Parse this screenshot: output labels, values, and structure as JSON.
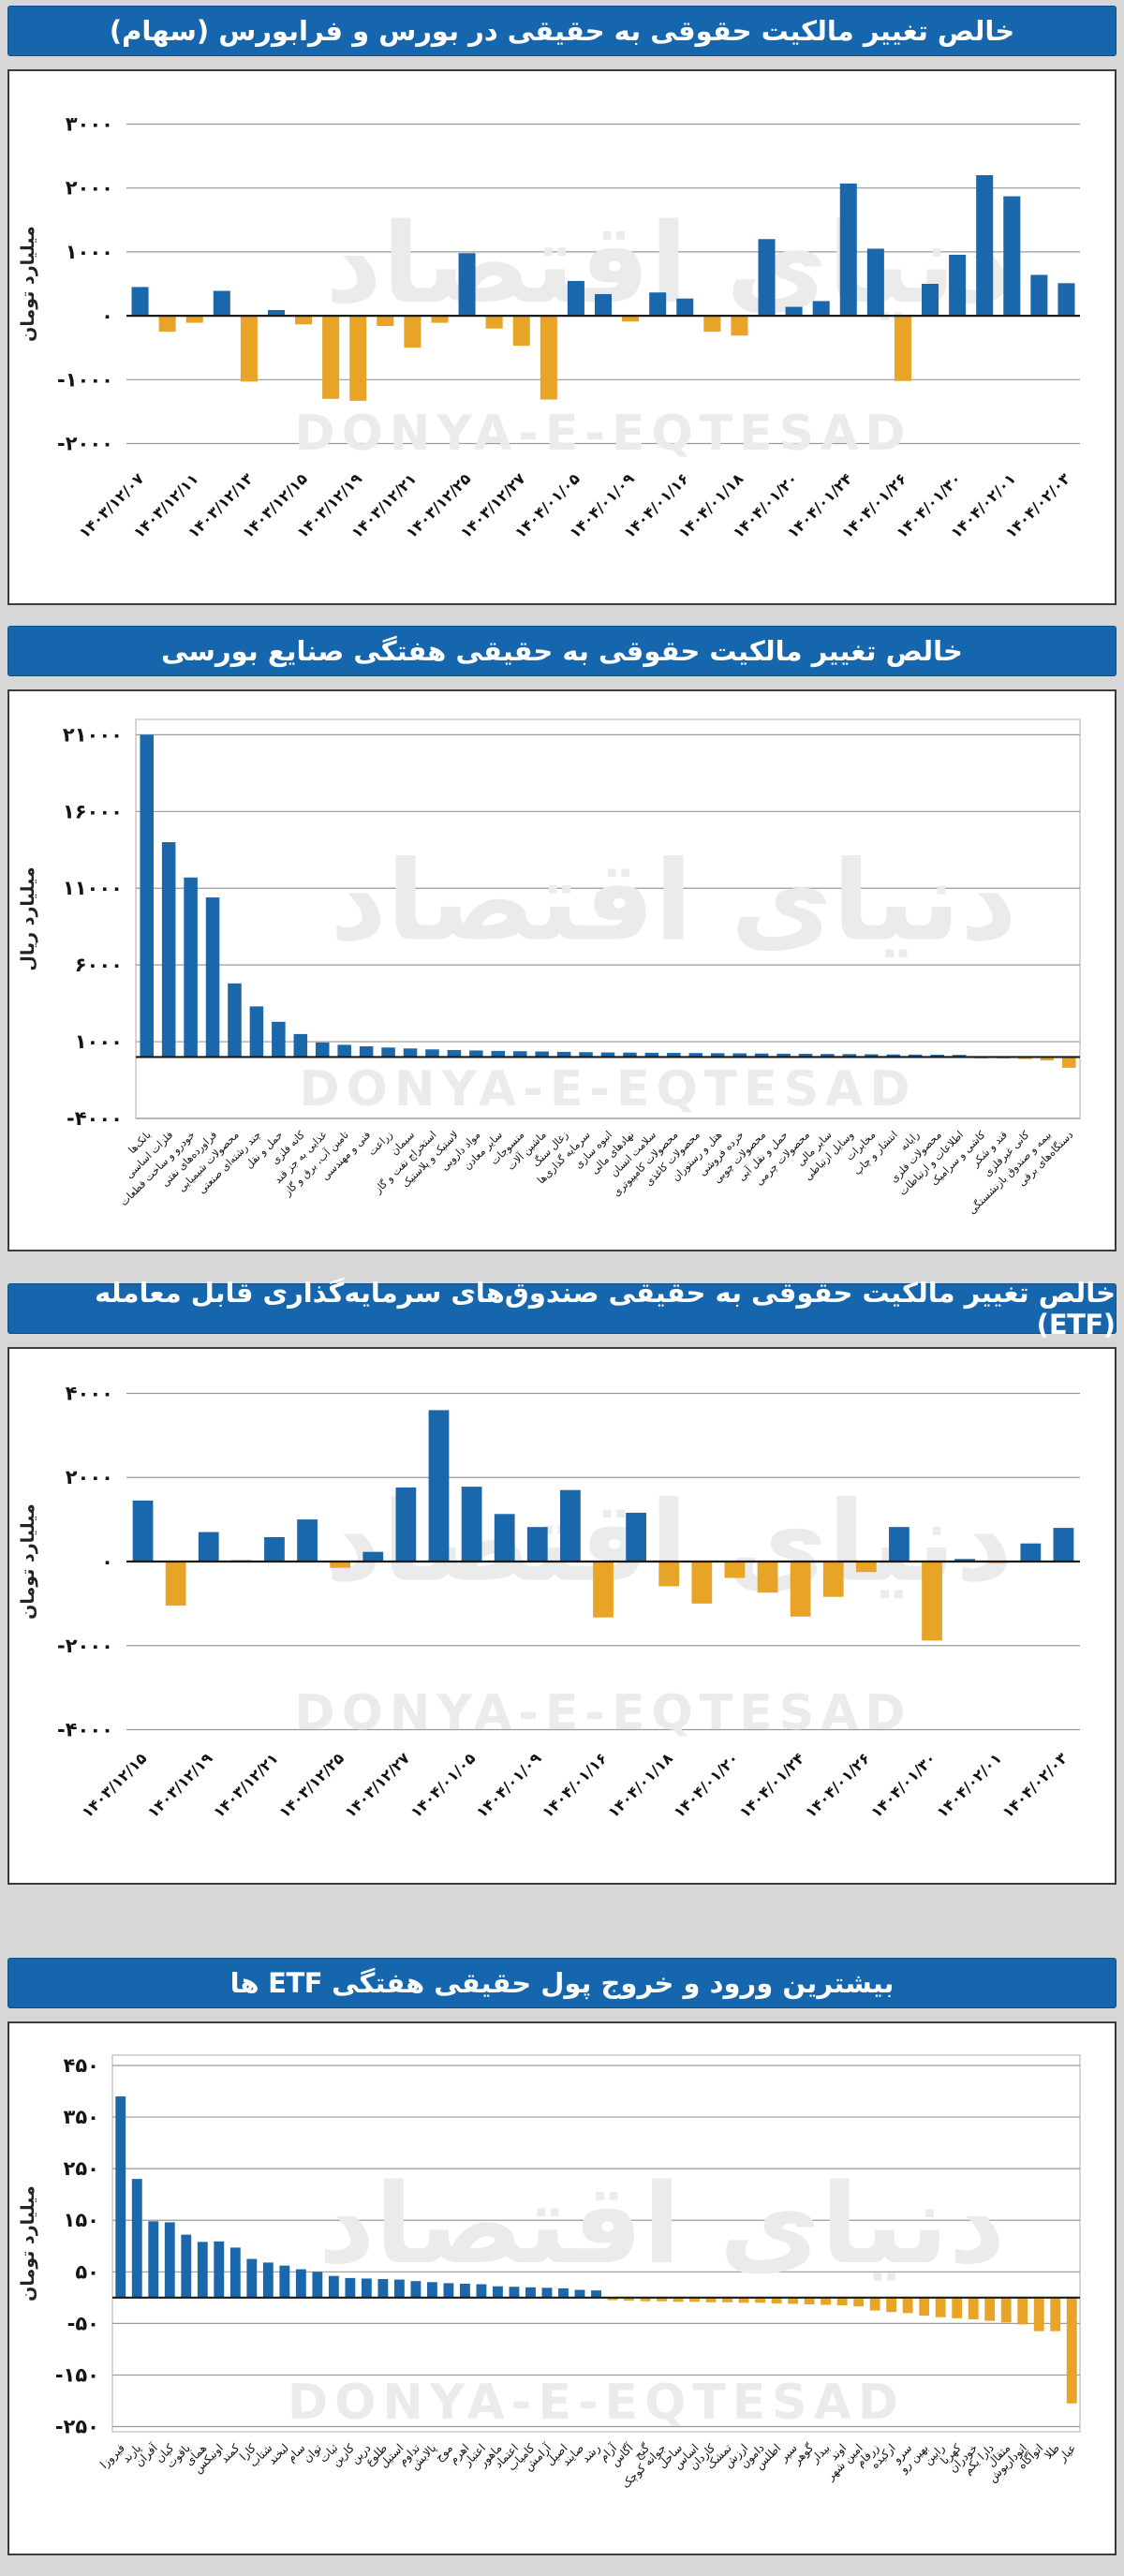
{
  "page": {
    "watermark_fa": "دنیای اقتصاد",
    "watermark_en": "DONYA-E-EQTESAD"
  },
  "colors": {
    "positive": "#1a67ab",
    "negative": "#e8a427",
    "title_bar": "#1666ae",
    "title_text": "#ffffff",
    "grid": "#9a9a9a",
    "axis": "#1a1a1a",
    "tick_text": "#141414",
    "watermark": "#ebebeb",
    "plot_border": "#c9c9c9"
  },
  "chart_data": [
    {
      "type": "bar",
      "title": "خالص تغییر مالکیت حقوقی به حقیقی در بورس و فرابورس (سهام)",
      "ylabel": "میلیارد تومان",
      "ylim": [
        -2300,
        3300
      ],
      "grid": true,
      "legend": "none",
      "yticks": [
        {
          "v": 3000,
          "label": "۳۰۰۰"
        },
        {
          "v": 2000,
          "label": "۲۰۰۰"
        },
        {
          "v": 1000,
          "label": "۱۰۰۰"
        },
        {
          "v": 0,
          "label": "۰"
        },
        {
          "v": -1000,
          "label": "-۱۰۰۰"
        },
        {
          "v": -2000,
          "label": "-۲۰۰۰"
        }
      ],
      "label_every": 2,
      "categories": [
        "۱۴۰۳/۱۲/۰۷",
        "۱۴۰۳/۱۲/۱۱",
        "۱۴۰۳/۱۲/۱۳",
        "۱۴۰۳/۱۲/۱۵",
        "۱۴۰۳/۱۲/۱۹",
        "۱۴۰۳/۱۲/۲۱",
        "۱۴۰۳/۱۲/۲۵",
        "۱۴۰۳/۱۲/۲۷",
        "۱۴۰۴/۰۱/۰۵",
        "۱۴۰۴/۰۱/۰۹",
        "۱۴۰۴/۰۱/۱۶",
        "۱۴۰۴/۰۱/۱۸",
        "۱۴۰۴/۰۱/۲۰",
        "۱۴۰۴/۰۱/۲۴",
        "۱۴۰۴/۰۱/۲۶",
        "۱۴۰۴/۰۱/۳۰",
        "۱۴۰۴/۰۲/۰۱",
        "۱۴۰۴/۰۲/۰۳"
      ],
      "values": [
        450,
        -250,
        -110,
        390,
        -1030,
        90,
        -135,
        -1300,
        -1330,
        -160,
        -500,
        -110,
        980,
        -200,
        -470,
        -1310,
        545,
        340,
        -90,
        365,
        270,
        -250,
        -310,
        1200,
        140,
        230,
        2070,
        1050,
        -1020,
        500,
        955,
        2200,
        1870,
        640,
        510
      ]
    },
    {
      "type": "bar",
      "title": "خالص تغییر مالکیت حقوقی به حقیقی هفتگی صنایع بورسی",
      "ylabel": "میلیارد ریال",
      "ylim": [
        -4000,
        22000
      ],
      "grid": true,
      "legend": "none",
      "yticks": [
        {
          "v": 21000,
          "label": "۲۱۰۰۰"
        },
        {
          "v": 16000,
          "label": "۱۶۰۰۰"
        },
        {
          "v": 11000,
          "label": "۱۱۰۰۰"
        },
        {
          "v": 6000,
          "label": "۶۰۰۰"
        },
        {
          "v": 1000,
          "label": "۱۰۰۰"
        },
        {
          "v": -4000,
          "label": "-۴۰۰۰"
        }
      ],
      "label_every": 1,
      "categories": [
        "بانک‌ها",
        "فلزات اساسی",
        "خودرو و ساخت قطعات",
        "فراورده‌های نفتی",
        "محصولات شیمیایی",
        "چند رشته‌ای صنعتی",
        "حمل و نقل",
        "کانه فلزی",
        "غذایی به جز قند",
        "تامین آب، برق و گاز",
        "فنی و مهندسی",
        "زراعت",
        "سیمان",
        "استخراج نفت و گاز",
        "لاستیک و پلاستیک",
        "مواد دارویی",
        "سایر معادن",
        "منسوجات",
        "ماشین آلات",
        "زغال سنگ",
        "سرمایه گذاری‌ها",
        "انبوه سازی",
        "نهادهای مالی",
        "سلامت انسان",
        "محصولات کامپیوتری",
        "محصولات کاغذی",
        "هتل و رستوران",
        "خرده فروشی",
        "محصولات چوبی",
        "حمل و نقل آبی",
        "محصولات چرمی",
        "سایر مالی",
        "وسایل ارتباطی",
        "مخابرات",
        "انتشار و چاپ",
        "رایانه",
        "محصولات فلزی",
        "اطلاعات و ارتباطات",
        "کاشی و سرامیک",
        "قند و شکر",
        "کانی غیرفلزی",
        "بیمه و صندوق بازنشستگی",
        "دستگاه‌های برقی"
      ],
      "values": [
        21000,
        14000,
        11700,
        10400,
        4800,
        3300,
        2300,
        1500,
        950,
        800,
        700,
        620,
        560,
        500,
        460,
        430,
        400,
        380,
        360,
        340,
        320,
        300,
        290,
        280,
        270,
        260,
        250,
        240,
        230,
        220,
        210,
        200,
        190,
        180,
        170,
        160,
        150,
        140,
        -60,
        -90,
        -130,
        -220,
        -700
      ]
    },
    {
      "type": "bar",
      "title": "خالص تغییر مالکیت حقوقی به حقیقی صندوق‌های سرمایه‌گذاری قابل معامله (ETF)",
      "ylabel": "میلیارد تومان",
      "ylim": [
        -4300,
        4300
      ],
      "grid": true,
      "legend": "none",
      "yticks": [
        {
          "v": 4000,
          "label": "۴۰۰۰"
        },
        {
          "v": 2000,
          "label": "۲۰۰۰"
        },
        {
          "v": 0,
          "label": "۰"
        },
        {
          "v": -2000,
          "label": "-۲۰۰۰"
        },
        {
          "v": -4000,
          "label": "-۴۰۰۰"
        }
      ],
      "label_every": 2,
      "categories": [
        "۱۴۰۳/۱۲/۱۵",
        "۱۴۰۳/۱۲/۱۹",
        "۱۴۰۳/۱۲/۲۱",
        "۱۴۰۳/۱۲/۲۵",
        "۱۴۰۳/۱۲/۲۷",
        "۱۴۰۴/۰۱/۰۵",
        "۱۴۰۴/۰۱/۰۹",
        "۱۴۰۴/۰۱/۱۶",
        "۱۴۰۴/۰۱/۱۸",
        "۱۴۰۴/۰۱/۲۰",
        "۱۴۰۴/۰۱/۲۴",
        "۱۴۰۴/۰۱/۲۶",
        "۱۴۰۴/۰۱/۳۰",
        "۱۴۰۴/۰۲/۰۱",
        "۱۴۰۴/۰۲/۰۳"
      ],
      "values": [
        1450,
        -1050,
        700,
        30,
        580,
        1000,
        -150,
        230,
        1760,
        3600,
        1780,
        1130,
        820,
        1700,
        -1330,
        1160,
        -590,
        -1000,
        -390,
        -740,
        -1310,
        -840,
        -250,
        820,
        -1880,
        60,
        -20,
        430,
        800
      ]
    },
    {
      "type": "bar",
      "title": "بیشترین ورود و خروج پول حقیقی هفتگی ETF ها",
      "ylabel": "میلیارد تومان",
      "ylim": [
        -260,
        470
      ],
      "grid": true,
      "legend": "none",
      "yticks": [
        {
          "v": 450,
          "label": "۴۵۰"
        },
        {
          "v": 350,
          "label": "۳۵۰"
        },
        {
          "v": 250,
          "label": "۲۵۰"
        },
        {
          "v": 150,
          "label": "۱۵۰"
        },
        {
          "v": 50,
          "label": "۵۰"
        },
        {
          "v": -50,
          "label": "-۵۰"
        },
        {
          "v": -150,
          "label": "-۱۵۰"
        },
        {
          "v": -250,
          "label": "-۲۵۰"
        }
      ],
      "label_every": 1,
      "categories": [
        "فیروزا",
        "پارند",
        "آفران",
        "کیان",
        "یاقوت",
        "همای",
        "اونیکس",
        "کمند",
        "کارا",
        "شتاب",
        "لبخند",
        "سام",
        "توان",
        "ثبات",
        "کارین",
        "درین",
        "طلوع",
        "استیل",
        "تداوم",
        "پالایش",
        "موج",
        "اهرم",
        "اعتبار",
        "ماهور",
        "اعتماد",
        "کامیاب",
        "آرامش",
        "اصیل",
        "صایند",
        "رشد",
        "آرام",
        "آگاس",
        "گنج",
        "جوانه کوچک",
        "ساحل",
        "اساس",
        "کاردان",
        "تمشک",
        "ارزش",
        "دامون",
        "اطلس",
        "سپر",
        "گوهر",
        "بیدار",
        "اوند",
        "امین شهر",
        "زرفام",
        "ارکیده",
        "سرو",
        "بهین رو",
        "رابین",
        "کهربا",
        "خودران",
        "دارا یکم",
        "مثقال",
        "اتوداریوش",
        "اتوآگاه",
        "طلا",
        "عیار"
      ],
      "values": [
        390,
        230,
        148,
        146,
        122,
        108,
        109,
        97,
        75,
        68,
        62,
        55,
        50,
        42,
        38,
        37,
        36,
        35,
        32,
        30,
        28,
        27,
        26,
        22,
        21,
        20,
        19,
        18,
        15,
        14,
        -5,
        -6,
        -7,
        -7,
        -8,
        -8,
        -9,
        -9,
        -10,
        -10,
        -11,
        -12,
        -13,
        -14,
        -15,
        -17,
        -25,
        -28,
        -30,
        -35,
        -38,
        -40,
        -42,
        -45,
        -48,
        -52,
        -65,
        -65,
        -205
      ]
    }
  ]
}
